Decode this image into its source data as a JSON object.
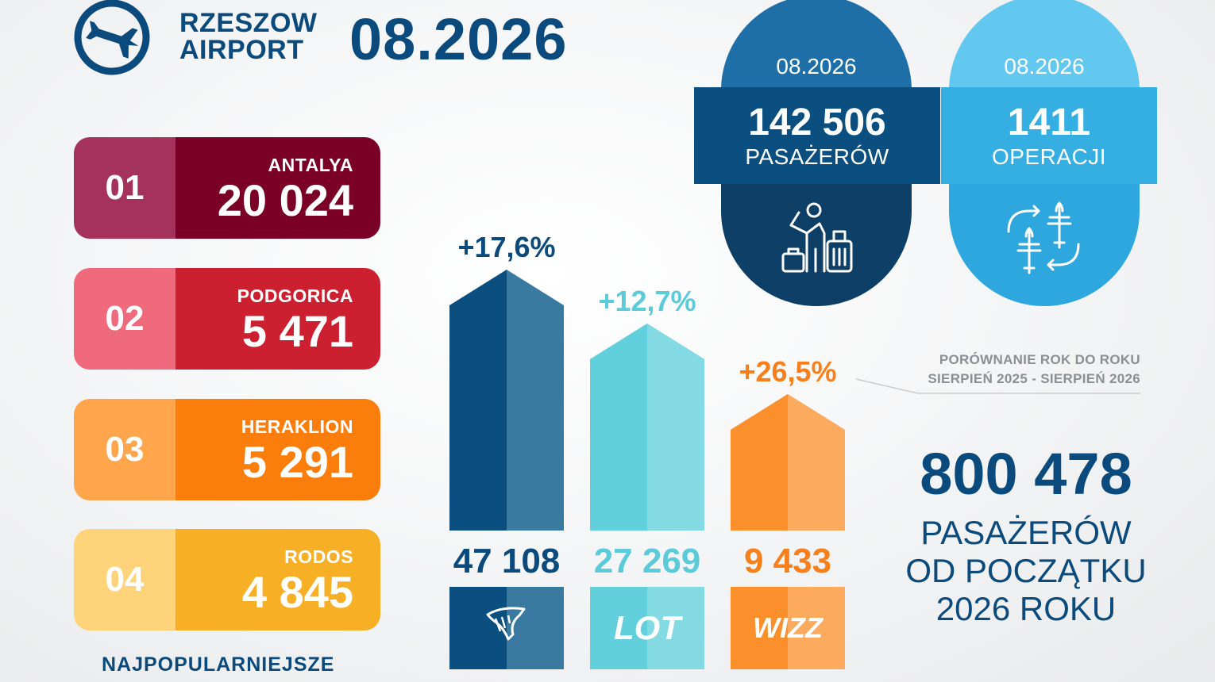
{
  "header": {
    "airport_line1": "RZESZOW",
    "airport_line2": "AIRPORT",
    "period": "08.2026"
  },
  "destinations": [
    {
      "rank": "01",
      "city": "ANTALYA",
      "value": "20 024",
      "rank_color": "#a5325a",
      "body_color": "#7a0027"
    },
    {
      "rank": "02",
      "city": "PODGORICA",
      "value": "5 471",
      "rank_color": "#ee6a7c",
      "body_color": "#cc2030"
    },
    {
      "rank": "03",
      "city": "HERAKLION",
      "value": "5 291",
      "rank_color": "#ffa64d",
      "body_color": "#fb7d0c"
    },
    {
      "rank": "04",
      "city": "RODOS",
      "value": "4 845",
      "rank_color": "#ffd37a",
      "body_color": "#f7b026"
    }
  ],
  "destinations_caption": "NAJPOPULARNIEJSZE",
  "passengers_card": {
    "period": "08.2026",
    "value": "142 506",
    "label": "PASAŻERÓW",
    "icon": "traveler-luggage-icon"
  },
  "operations_card": {
    "period": "08.2026",
    "value": "1411",
    "label": "OPERACJI",
    "icon": "planes-arrows-icon"
  },
  "comparison_note": {
    "line1": "PORÓWNANIE ROK DO ROKU",
    "line2": "SIERPIEŃ 2025 - SIERPIEŃ 2026"
  },
  "ytd": {
    "value": "800 478",
    "line1": "PASAŻERÓW",
    "line2": "OD POCZĄTKU",
    "line3": "2026 ROKU"
  },
  "chart_data": {
    "type": "bar",
    "categories": [
      "Ryanair",
      "LOT",
      "Wizz Air"
    ],
    "values": [
      47108,
      27269,
      9433
    ],
    "value_labels": [
      "47 108",
      "27 269",
      "9 433"
    ],
    "change_labels": [
      "+17,6%",
      "+12,7%",
      "+26,5%"
    ],
    "logo_texts": [
      "",
      "LOT",
      "WIZZ"
    ],
    "colors": [
      {
        "dark": "#0b4f80",
        "light": "#3a79a0",
        "text": "#0b4a7d"
      },
      {
        "dark": "#62cfdc",
        "light": "#84dae3",
        "text": "#5ccbd9"
      },
      {
        "dark": "#fb8f2c",
        "light": "#fcab5e",
        "text": "#f7801c"
      }
    ]
  }
}
